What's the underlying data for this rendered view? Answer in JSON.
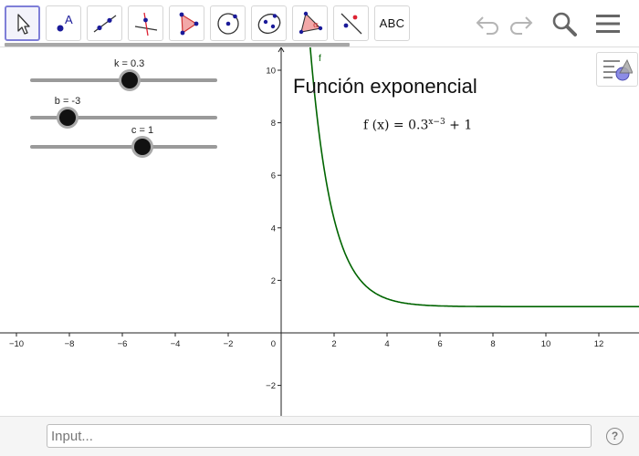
{
  "toolbar": {
    "tools": [
      {
        "name": "move",
        "label": ""
      },
      {
        "name": "point",
        "label": ""
      },
      {
        "name": "line",
        "label": ""
      },
      {
        "name": "perpendicular-line",
        "label": ""
      },
      {
        "name": "polygon",
        "label": ""
      },
      {
        "name": "circle-center-point",
        "label": ""
      },
      {
        "name": "ellipse",
        "label": ""
      },
      {
        "name": "angle",
        "label": ""
      },
      {
        "name": "reflect-about-line",
        "label": ""
      },
      {
        "name": "text",
        "label": "ABC"
      }
    ],
    "active_tool": "move",
    "accent_color": "#7f7fd8"
  },
  "sliders": [
    {
      "name": "k",
      "label": "k = 0.3",
      "value": 0.3,
      "min": -5,
      "max": 5
    },
    {
      "name": "b",
      "label": "b = -3",
      "value": -3,
      "min": -5,
      "max": 5
    },
    {
      "name": "c",
      "label": "c = 1",
      "value": 1,
      "min": -5,
      "max": 5
    }
  ],
  "graph": {
    "title": "Función exponencial",
    "formula_lhs": "f (x)  =  0.3",
    "formula_exp": "x−3",
    "formula_rhs": " + 1",
    "curve_label": "f",
    "curve_color": "#006400",
    "origin_label": "0"
  },
  "chart_data": {
    "type": "line",
    "series": [
      {
        "name": "f",
        "expression": "0.3^(x-3)+1"
      }
    ],
    "x_ticks": [
      -10,
      -8,
      -6,
      -4,
      -2,
      2,
      4,
      6,
      8,
      10,
      12
    ],
    "y_ticks": [
      -2,
      2,
      4,
      6,
      8,
      10
    ],
    "xlim": [
      -10.7,
      13.3
    ],
    "ylim": [
      -2.9,
      10.8
    ],
    "grid": false
  },
  "input_bar": {
    "placeholder": "Input..."
  }
}
